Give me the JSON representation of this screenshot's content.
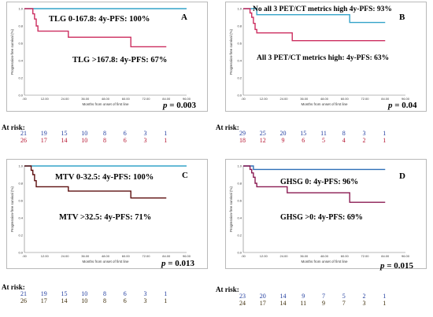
{
  "chart_data": [
    {
      "panel": "A",
      "type": "line",
      "xlabel": "Months from onset of first line",
      "ylabel": "Progression-free survival (%)",
      "xticks": [
        ".00",
        "12.00",
        "24.00",
        "36.00",
        "48.00",
        "60.00",
        "72.00",
        "84.00",
        "96.00"
      ],
      "yticks": [
        "0.0",
        "0.2",
        "0.4",
        "0.6",
        "0.8",
        "1.0"
      ],
      "xlim": [
        0,
        96
      ],
      "ylim": [
        0,
        1
      ],
      "series": [
        {
          "label": "TLG 0-167.8: 4y-PFS: 100%",
          "color": "#33a3c9",
          "points": [
            [
              0,
              1.0
            ],
            [
              96,
              1.0
            ]
          ]
        },
        {
          "label": "TLG >167.8: 4y-PFS: 67%",
          "color": "#cc2d5f",
          "points": [
            [
              0,
              1.0
            ],
            [
              5,
              0.94
            ],
            [
              6,
              0.88
            ],
            [
              7,
              0.8
            ],
            [
              8,
              0.74
            ],
            [
              25,
              0.74
            ],
            [
              26,
              0.67
            ],
            [
              62,
              0.67
            ],
            [
              63,
              0.56
            ],
            [
              84,
              0.56
            ]
          ]
        }
      ],
      "p_label": "p",
      "p_value": " = 0.003",
      "at_risk_label": "At risk:",
      "at_risk": [
        {
          "color": "#1f3b9e",
          "values": [
            "21",
            "19",
            "15",
            "10",
            "8",
            "6",
            "3",
            "1"
          ]
        },
        {
          "color": "#b5122e",
          "values": [
            "26",
            "17",
            "14",
            "10",
            "8",
            "6",
            "3",
            "1"
          ]
        }
      ]
    },
    {
      "panel": "B",
      "type": "line",
      "xlabel": "Months from onset of first line",
      "ylabel": "Progression-free survival (%)",
      "xticks": [
        ".00",
        "12.00",
        "24.00",
        "36.00",
        "48.00",
        "60.00",
        "72.00",
        "84.00",
        "96.00"
      ],
      "yticks": [
        "0.0",
        "0.2",
        "0.4",
        "0.6",
        "0.8",
        "1.0"
      ],
      "xlim": [
        0,
        96
      ],
      "ylim": [
        0,
        1
      ],
      "series": [
        {
          "label": "No all 3 PET/CT metrics high 4y-PFS: 93%",
          "color": "#33a3c9",
          "points": [
            [
              0,
              1.0
            ],
            [
              7,
              1.0
            ],
            [
              8,
              0.93
            ],
            [
              62,
              0.93
            ],
            [
              63,
              0.84
            ],
            [
              84,
              0.84
            ]
          ]
        },
        {
          "label": "All 3 PET/CT metrics high: 4y-PFS: 63%",
          "color": "#cc2d5f",
          "points": [
            [
              0,
              1.0
            ],
            [
              4,
              0.95
            ],
            [
              5,
              0.9
            ],
            [
              6,
              0.83
            ],
            [
              7,
              0.76
            ],
            [
              8,
              0.72
            ],
            [
              28,
              0.72
            ],
            [
              29,
              0.63
            ],
            [
              84,
              0.63
            ]
          ]
        }
      ],
      "p_label": "p",
      "p_value": " = 0.04",
      "at_risk_label": "At risk:",
      "at_risk": [
        {
          "color": "#1f3b9e",
          "values": [
            "29",
            "25",
            "20",
            "15",
            "11",
            "8",
            "3",
            "1"
          ]
        },
        {
          "color": "#b5122e",
          "values": [
            "18",
            "12",
            "9",
            "6",
            "5",
            "4",
            "2",
            "1"
          ]
        }
      ]
    },
    {
      "panel": "C",
      "type": "line",
      "xlabel": "Months from onset of first line",
      "ylabel": "Progression-free survival (%)",
      "xticks": [
        ".00",
        "12.00",
        "24.00",
        "36.00",
        "48.00",
        "60.00",
        "72.00",
        "84.00",
        "96.00"
      ],
      "yticks": [
        "0.0",
        "0.2",
        "0.4",
        "0.6",
        "0.8",
        "1.0"
      ],
      "xlim": [
        0,
        96
      ],
      "ylim": [
        0,
        1
      ],
      "series": [
        {
          "label": "MTV 0-32.5: 4y-PFS: 100%",
          "color": "#33a3c9",
          "points": [
            [
              0,
              1.0
            ],
            [
              96,
              1.0
            ]
          ]
        },
        {
          "label": "MTV >32.5: 4y-PFS: 71%",
          "color": "#5c0e0e",
          "points": [
            [
              0,
              1.0
            ],
            [
              4,
              0.95
            ],
            [
              5,
              0.9
            ],
            [
              6,
              0.83
            ],
            [
              7,
              0.76
            ],
            [
              25,
              0.76
            ],
            [
              26,
              0.71
            ],
            [
              62,
              0.71
            ],
            [
              63,
              0.63
            ],
            [
              84,
              0.63
            ]
          ]
        }
      ],
      "p_label": "p",
      "p_value": " = 0.013",
      "at_risk_label": "At risk:",
      "at_risk": [
        {
          "color": "#1f3b9e",
          "values": [
            "21",
            "19",
            "15",
            "10",
            "8",
            "6",
            "3",
            "1"
          ]
        },
        {
          "color": "#3b2a05",
          "values": [
            "26",
            "17",
            "14",
            "10",
            "8",
            "6",
            "3",
            "1"
          ]
        }
      ]
    },
    {
      "panel": "D",
      "type": "line",
      "xlabel": "Months from onset of first line",
      "ylabel": "Progression-free survival (%)",
      "xticks": [
        ".00",
        "12.00",
        "24.00",
        "36.00",
        "48.00",
        "60.00",
        "72.00",
        "84.00",
        "96.00"
      ],
      "yticks": [
        "0.0",
        "0.2",
        "0.4",
        "0.6",
        "0.8",
        "1.0"
      ],
      "xlim": [
        0,
        96
      ],
      "ylim": [
        0,
        1
      ],
      "series": [
        {
          "label": "GHSG 0: 4y-PFS: 96%",
          "color": "#2f6fb7",
          "points": [
            [
              0,
              1.0
            ],
            [
              5,
              1.0
            ],
            [
              6,
              0.96
            ],
            [
              84,
              0.96
            ]
          ]
        },
        {
          "label": "GHSG >0: 4y-PFS: 69%",
          "color": "#8a1a52",
          "points": [
            [
              0,
              1.0
            ],
            [
              4,
              0.96
            ],
            [
              5,
              0.92
            ],
            [
              6,
              0.87
            ],
            [
              7,
              0.8
            ],
            [
              8,
              0.76
            ],
            [
              25,
              0.76
            ],
            [
              26,
              0.69
            ],
            [
              62,
              0.69
            ],
            [
              63,
              0.58
            ],
            [
              84,
              0.58
            ]
          ]
        }
      ],
      "p_label": "p",
      "p_value": " = 0.015",
      "at_risk_label": "At risk:",
      "at_risk": [
        {
          "color": "#1f3b9e",
          "values": [
            "23",
            "20",
            "14",
            "9",
            "7",
            "5",
            "2",
            "1"
          ]
        },
        {
          "color": "#3b2a05",
          "values": [
            "24",
            "17",
            "14",
            "11",
            "9",
            "7",
            "3",
            "1"
          ]
        }
      ]
    }
  ]
}
